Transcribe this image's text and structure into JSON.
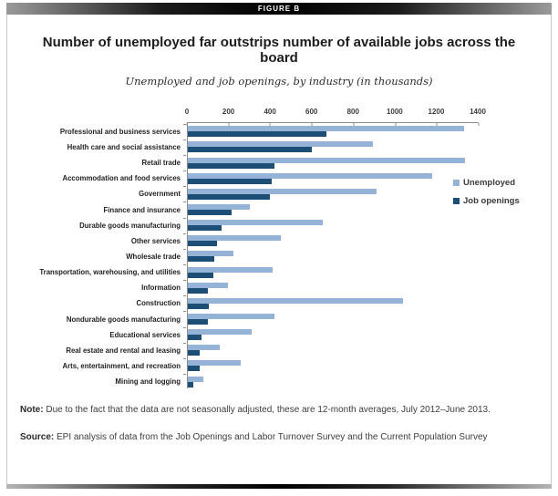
{
  "figure_label": "FIGURE B",
  "title": "Number of unemployed far outstrips number of available jobs across the board",
  "subtitle": "Unemployed and job openings, by industry (in thousands)",
  "note": {
    "label": "Note:",
    "text": " Due to the fact that the data are not seasonally adjusted, these are 12-month averages, July 2012–June 2013."
  },
  "source": {
    "label": "Source:",
    "text": " EPI analysis of data from the Job Openings and Labor Turnover Survey and the Current Population Survey"
  },
  "chart_data": {
    "type": "bar",
    "orientation": "horizontal",
    "title": "Number of unemployed far outstrips number of available jobs across the board",
    "subtitle": "Unemployed and job openings, by industry (in thousands)",
    "xlim": [
      0,
      1400
    ],
    "x_ticks": [
      0,
      200,
      400,
      600,
      800,
      1000,
      1200,
      1400
    ],
    "grid": false,
    "legend_position": "right",
    "colors": {
      "unemployed": "#95b3d7",
      "job_openings": "#1d4f76"
    },
    "categories": [
      "Professional and business services",
      "Health care and social assistance",
      "Retail trade",
      "Accommodation and food services",
      "Government",
      "Finance and insurance",
      "Durable goods manufacturing",
      "Other services",
      "Wholesale trade",
      "Transportation, warehousing, and utilities",
      "Information",
      "Construction",
      "Nondurable goods manufacturing",
      "Educational services",
      "Real estate and rental and leasing",
      "Arts, entertainment, and recreation",
      "Mining and logging"
    ],
    "series": [
      {
        "name": "Unemployed",
        "values": [
          1334,
          895,
          1340,
          1180,
          910,
          298,
          650,
          450,
          220,
          408,
          193,
          1040,
          418,
          310,
          154,
          254,
          73
        ]
      },
      {
        "name": "Job openings",
        "values": [
          668,
          600,
          420,
          405,
          396,
          210,
          165,
          140,
          128,
          123,
          98,
          103,
          95,
          66,
          58,
          57,
          25
        ]
      }
    ]
  }
}
